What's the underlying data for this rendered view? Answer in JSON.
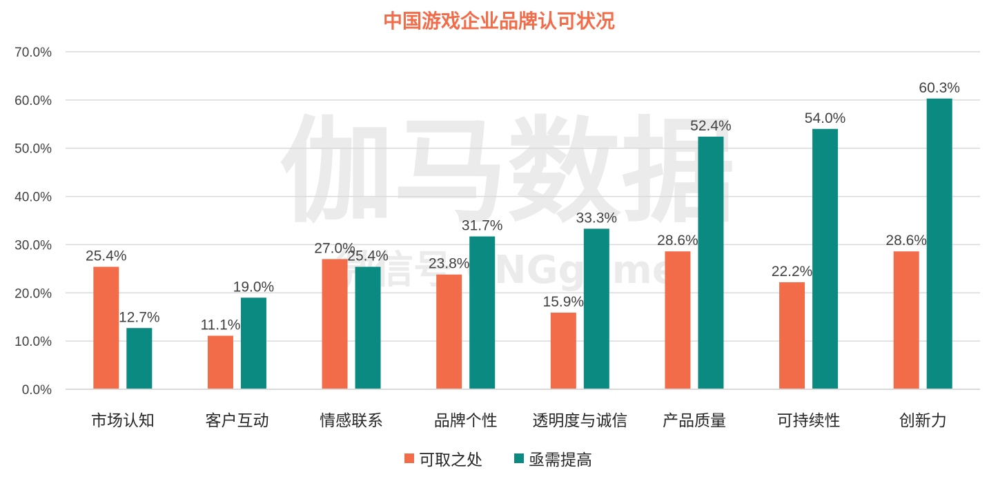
{
  "colors": {
    "series1": "#f26c4a",
    "series2": "#0a8a80",
    "title": "#f26c4a",
    "grid": "#d9d9d9"
  },
  "watermark": {
    "main": "伽马数据",
    "sub": "微信号 CNGgame"
  },
  "chart_data": {
    "type": "bar",
    "title": "中国游戏企业品牌认可状况",
    "categories": [
      "市场认知",
      "客户互动",
      "情感联系",
      "品牌个性",
      "透明度与诚信",
      "产品质量",
      "可持续性",
      "创新力"
    ],
    "series": [
      {
        "name": "可取之处",
        "values": [
          25.4,
          11.1,
          27.0,
          23.8,
          15.9,
          28.6,
          22.2,
          28.6
        ]
      },
      {
        "name": "亟需提高",
        "values": [
          12.7,
          19.0,
          25.4,
          31.7,
          33.3,
          52.4,
          54.0,
          60.3
        ]
      }
    ],
    "ylim": [
      0,
      70
    ],
    "yticks": [
      0,
      10,
      20,
      30,
      40,
      50,
      60,
      70
    ],
    "tick_format": "0.0%",
    "xlabel": "",
    "ylabel": "",
    "grid": true,
    "legend": "bottom-center"
  }
}
